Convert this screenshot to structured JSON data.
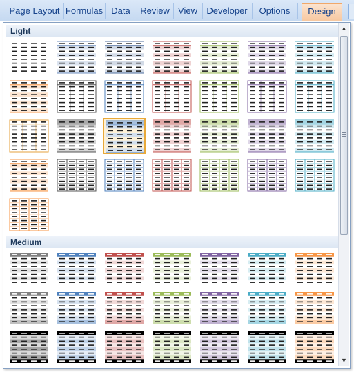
{
  "ribbon": {
    "tabs": [
      {
        "label": "Page Layout",
        "active": false
      },
      {
        "label": "Formulas",
        "active": false
      },
      {
        "label": "Data",
        "active": false
      },
      {
        "label": "Review",
        "active": false
      },
      {
        "label": "View",
        "active": false
      },
      {
        "label": "Developer",
        "active": false
      },
      {
        "label": "Options",
        "active": false
      },
      {
        "label": "Design",
        "active": true
      }
    ]
  },
  "gallery": {
    "sections": [
      {
        "title": "Light"
      },
      {
        "title": "Medium"
      }
    ],
    "light_styles": [
      {
        "style": "plain",
        "color": "#555555"
      },
      {
        "style": "banded",
        "color": "#6f8fbf"
      },
      {
        "style": "banded",
        "color": "#4f6f9f"
      },
      {
        "style": "banded",
        "color": "#c0504d"
      },
      {
        "style": "banded",
        "color": "#9bbb59"
      },
      {
        "style": "banded",
        "color": "#8064a2"
      },
      {
        "style": "banded",
        "color": "#4bacc6"
      },
      {
        "style": "banded",
        "color": "#f79646"
      },
      {
        "style": "outline",
        "color": "#555555"
      },
      {
        "style": "outline",
        "color": "#4f81bd"
      },
      {
        "style": "outline",
        "color": "#c0504d"
      },
      {
        "style": "outline",
        "color": "#9bbb59"
      },
      {
        "style": "outline",
        "color": "#8064a2"
      },
      {
        "style": "outline",
        "color": "#4bacc6"
      },
      {
        "style": "outline",
        "color": "#e6a23c"
      },
      {
        "style": "header",
        "color": "#555555"
      },
      {
        "style": "header",
        "color": "#4f81bd",
        "selected": true
      },
      {
        "style": "header",
        "color": "#c0504d"
      },
      {
        "style": "header",
        "color": "#9bbb59"
      },
      {
        "style": "header",
        "color": "#8064a2"
      },
      {
        "style": "header",
        "color": "#4bacc6"
      },
      {
        "style": "banded",
        "color": "#f79646"
      },
      {
        "style": "grid",
        "color": "#555555"
      },
      {
        "style": "grid",
        "color": "#4f81bd"
      },
      {
        "style": "grid",
        "color": "#c0504d"
      },
      {
        "style": "grid",
        "color": "#9bbb59"
      },
      {
        "style": "grid",
        "color": "#8064a2"
      },
      {
        "style": "grid",
        "color": "#4bacc6"
      },
      {
        "style": "grid",
        "color": "#f79646"
      }
    ],
    "medium_styles": [
      {
        "style": "filled",
        "color": "#808080"
      },
      {
        "style": "filled",
        "color": "#4f81bd"
      },
      {
        "style": "filled",
        "color": "#c0504d"
      },
      {
        "style": "filled",
        "color": "#9bbb59"
      },
      {
        "style": "filled",
        "color": "#8064a2"
      },
      {
        "style": "filled",
        "color": "#4bacc6"
      },
      {
        "style": "filled",
        "color": "#f79646"
      },
      {
        "style": "filled2",
        "color": "#808080"
      },
      {
        "style": "filled2",
        "color": "#4f81bd"
      },
      {
        "style": "filled2",
        "color": "#c0504d"
      },
      {
        "style": "filled2",
        "color": "#9bbb59"
      },
      {
        "style": "filled2",
        "color": "#8064a2"
      },
      {
        "style": "filled2",
        "color": "#4bacc6"
      },
      {
        "style": "filled2",
        "color": "#f79646"
      },
      {
        "style": "dark",
        "color": "#000000"
      },
      {
        "style": "dark",
        "color": "#4f81bd"
      },
      {
        "style": "dark",
        "color": "#c0504d"
      },
      {
        "style": "dark",
        "color": "#9bbb59"
      },
      {
        "style": "dark",
        "color": "#8064a2"
      },
      {
        "style": "dark",
        "color": "#4bacc6"
      },
      {
        "style": "dark",
        "color": "#f79646"
      }
    ],
    "scrollbar": {
      "up_icon": "triangle-up",
      "down_icon": "triangle-down"
    }
  }
}
